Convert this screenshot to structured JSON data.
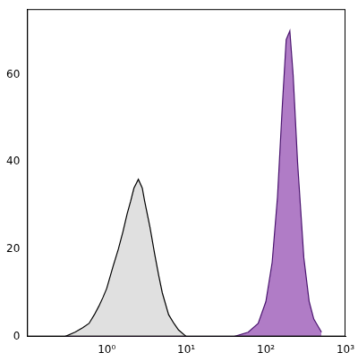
{
  "chart_data": {
    "type": "line",
    "x": [
      0.3,
      0.4,
      0.5,
      0.6,
      0.7,
      0.8,
      0.9,
      1,
      1.2,
      1.4,
      1.6,
      1.8,
      2,
      2.2,
      2.5,
      2.8,
      3,
      3.5,
      4,
      4.5,
      5,
      6,
      7,
      8,
      10,
      20,
      40,
      60,
      80,
      100,
      120,
      140,
      160,
      180,
      200,
      220,
      250,
      300,
      350,
      400,
      500
    ],
    "series": [
      {
        "color": "#e0e0e0",
        "values": [
          0,
          1,
          2,
          3,
          5,
          7,
          9,
          11,
          16,
          20,
          24,
          28,
          31,
          34,
          36,
          34,
          31,
          25,
          19,
          14,
          10,
          5,
          3,
          1.5,
          0,
          0,
          0,
          0,
          0,
          0,
          0,
          0,
          0,
          0,
          0,
          0,
          0,
          0,
          0,
          0,
          0
        ]
      },
      {
        "color": "#b07cc6",
        "values": [
          0,
          0,
          0,
          0,
          0,
          0,
          0,
          0,
          0,
          0,
          0,
          0,
          0,
          0,
          0,
          0,
          0,
          0,
          0,
          0,
          0,
          0,
          0,
          0,
          0,
          0,
          0,
          1,
          3,
          8,
          17,
          32,
          52,
          68,
          70,
          60,
          40,
          18,
          8,
          4,
          1
        ]
      }
    ],
    "log": "x",
    "grid": false,
    "xlim": [
      0.1,
      1000
    ],
    "xticks": [
      {
        "value": 1,
        "label": "10⁰"
      },
      {
        "value": 10,
        "label": "10¹"
      },
      {
        "value": 100,
        "label": "10²"
      },
      {
        "value": 1000,
        "label": "10³"
      }
    ],
    "ylim": [
      0,
      75
    ],
    "yticks": [
      0,
      20,
      40,
      60
    ]
  }
}
